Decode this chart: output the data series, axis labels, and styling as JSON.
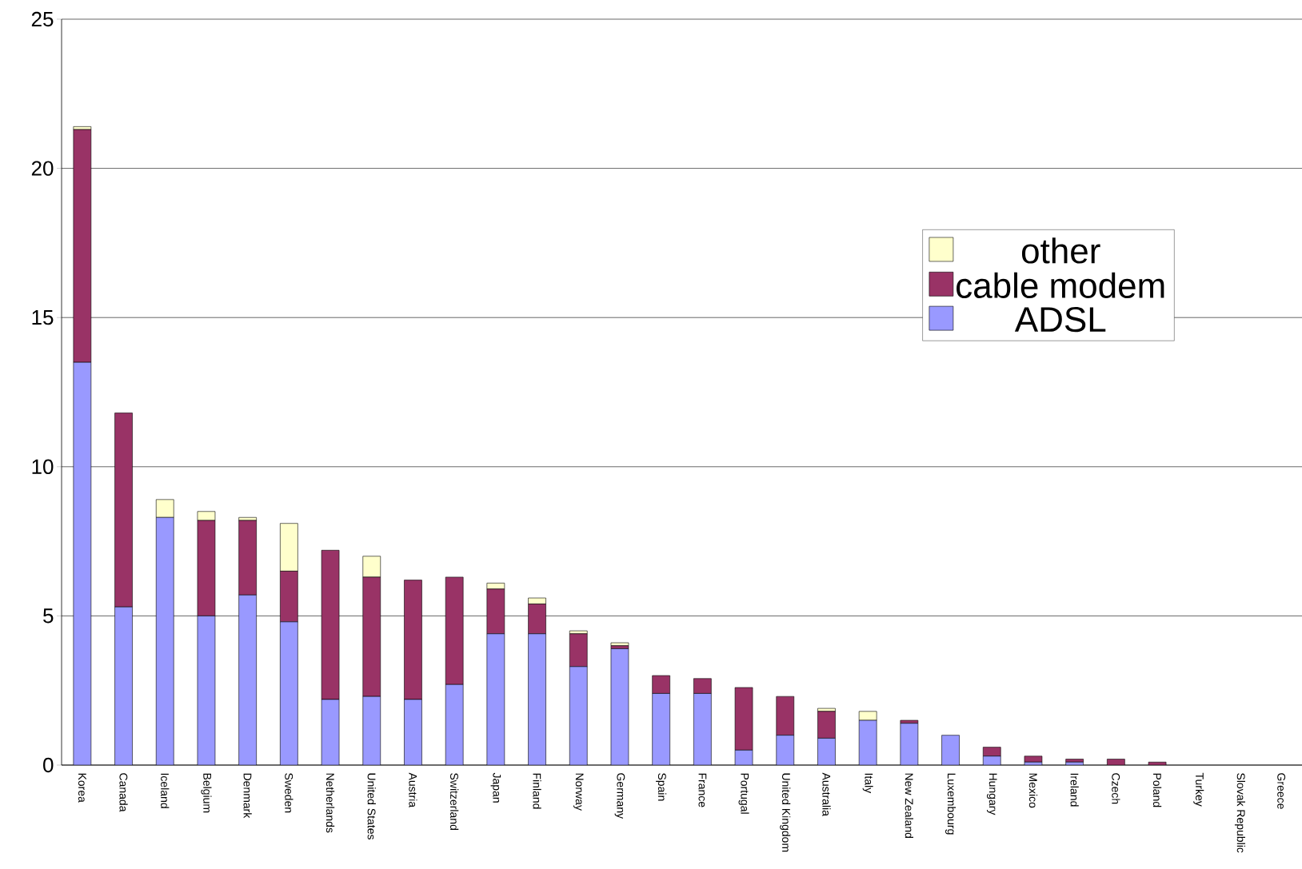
{
  "chart_data": {
    "type": "bar",
    "stacked": true,
    "categories": [
      "Korea",
      "Canada",
      "Iceland",
      "Belgium",
      "Denmark",
      "Sweden",
      "Netherlands",
      "United States",
      "Austria",
      "Switzerland",
      "Japan",
      "Finland",
      "Norway",
      "Germany",
      "Spain",
      "France",
      "Portugal",
      "United Kingdom",
      "Australia",
      "Italy",
      "New Zealand",
      "Luxembourg",
      "Hungary",
      "Mexico",
      "Ireland",
      "Czech",
      "Poland",
      "Turkey",
      "Slovak Republic",
      "Greece"
    ],
    "series": [
      {
        "name": "ADSL",
        "color": "#9999ff",
        "values": [
          13.5,
          5.3,
          8.3,
          5.0,
          5.7,
          4.8,
          2.2,
          2.3,
          2.2,
          2.7,
          4.4,
          4.4,
          3.3,
          3.9,
          2.4,
          2.4,
          0.5,
          1.0,
          0.9,
          1.5,
          1.4,
          1.0,
          0.3,
          0.1,
          0.1,
          0,
          0,
          0,
          0,
          0
        ]
      },
      {
        "name": "cable modem",
        "color": "#993366",
        "values": [
          7.8,
          6.5,
          0,
          3.2,
          2.5,
          1.7,
          5.0,
          4.0,
          4.0,
          3.6,
          1.5,
          1.0,
          1.1,
          0.1,
          0.6,
          0.5,
          2.1,
          1.3,
          0.9,
          0,
          0.1,
          0,
          0.3,
          0.2,
          0.1,
          0.2,
          0.1,
          0,
          0,
          0
        ]
      },
      {
        "name": "other",
        "color": "#ffffcc",
        "values": [
          0.1,
          0,
          0.6,
          0.3,
          0.1,
          1.6,
          0,
          0.7,
          0,
          0,
          0.2,
          0.2,
          0.1,
          0.1,
          0,
          0,
          0,
          0,
          0.1,
          0.3,
          0,
          0,
          0,
          0,
          0,
          0,
          0,
          0,
          0,
          0
        ]
      }
    ],
    "ylim": [
      0,
      25
    ],
    "yticks": [
      0,
      5,
      10,
      15,
      20,
      25
    ],
    "grid": "y",
    "legend": "right"
  }
}
